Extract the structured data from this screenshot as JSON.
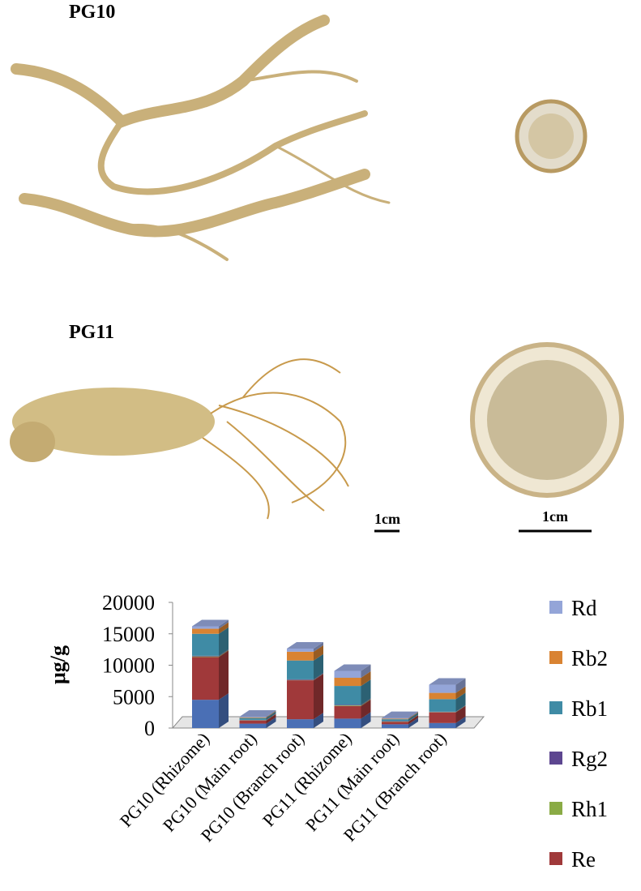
{
  "labels": {
    "sample_1": "PG10",
    "sample_2": "PG11",
    "scale_1": "1cm",
    "scale_2": "1cm"
  },
  "chart_data": {
    "type": "stacked-bar-3d",
    "y_label": "μg/g",
    "categories": [
      "PG10 (Rhizome)",
      "PG10 (Main root)",
      "PG10 (Branch root)",
      "PG11 (Rhizome)",
      "PG11 (Main root)",
      "PG11 (Branch root)"
    ],
    "series": [
      {
        "color": "#4a6fb5",
        "values": [
          4500,
          700,
          1400,
          1500,
          600,
          800
        ]
      },
      {
        "name": "Re",
        "color": "#a0393a",
        "values": [
          6800,
          500,
          6200,
          2000,
          400,
          1700
        ]
      },
      {
        "name": "Rh1",
        "color": "#8aab45",
        "values": [
          100,
          50,
          50,
          100,
          50,
          50
        ]
      },
      {
        "name": "Rg2",
        "color": "#5d4690",
        "values": [
          100,
          50,
          100,
          100,
          50,
          50
        ]
      },
      {
        "name": "Rb1",
        "color": "#3f8ba5",
        "values": [
          3500,
          300,
          3000,
          3000,
          300,
          2000
        ]
      },
      {
        "name": "Rb2",
        "color": "#d98332",
        "values": [
          800,
          100,
          1400,
          1300,
          100,
          1000
        ]
      },
      {
        "name": "Rd",
        "color": "#94a5d8",
        "values": [
          400,
          100,
          500,
          1100,
          100,
          1300
        ]
      }
    ],
    "ylim": [
      0,
      20000
    ],
    "yticks": [
      0,
      5000,
      10000,
      15000,
      20000
    ]
  }
}
